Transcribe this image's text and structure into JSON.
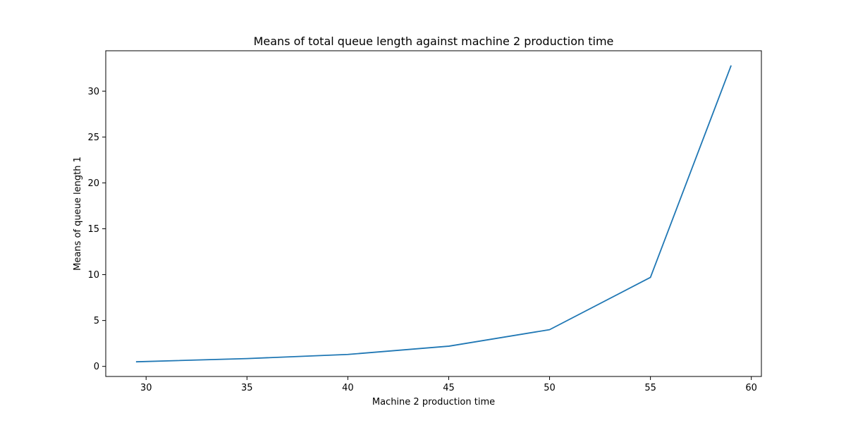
{
  "chart_data": {
    "type": "line",
    "title": "Means of total queue length against machine 2 production time",
    "xlabel": "Machine 2 production time",
    "ylabel": "Means of queue length 1",
    "xlim": [
      28,
      60.5
    ],
    "ylim": [
      -1.1,
      34.4
    ],
    "x_ticks": [
      30,
      35,
      40,
      45,
      50,
      55,
      60
    ],
    "y_ticks": [
      0,
      5,
      10,
      15,
      20,
      25,
      30
    ],
    "grid": false,
    "series": [
      {
        "color": "#1f77b4",
        "x": [
          29.5,
          35,
          40,
          45,
          50,
          55,
          59
        ],
        "y": [
          0.5,
          0.85,
          1.3,
          2.2,
          4.0,
          9.7,
          32.8
        ]
      }
    ]
  }
}
